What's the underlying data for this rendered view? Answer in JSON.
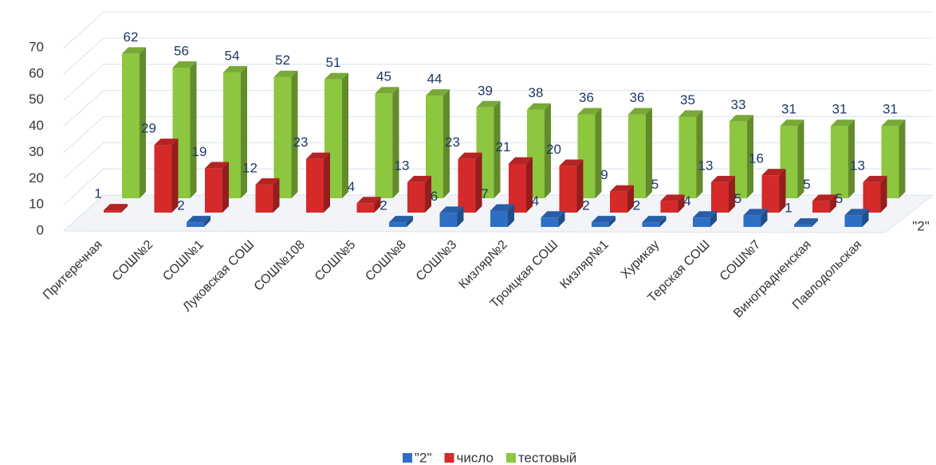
{
  "chart_data": {
    "type": "bar3d",
    "categories": [
      "Притеречная",
      "СОШ№2",
      "СОШ№1",
      "Луковская СОШ",
      "СОШ№108",
      "СОШ№5",
      "СОШ№8",
      "СОШ№3",
      "Кизляр№2",
      "Троицкая СОШ",
      "Кизляр№1",
      "Хурикау",
      "Терская СОШ",
      "СОШ№7",
      "Виноградненская",
      "Павлодольская"
    ],
    "series": [
      {
        "name": "\"2\"",
        "color": "#2e6fc4",
        "values": [
          null,
          null,
          2,
          null,
          null,
          null,
          2,
          6,
          7,
          4,
          2,
          2,
          4,
          5,
          1,
          5
        ]
      },
      {
        "name": "число",
        "color": "#d42a2a",
        "values": [
          1,
          29,
          19,
          12,
          23,
          4,
          13,
          23,
          21,
          20,
          9,
          5,
          13,
          16,
          5,
          13
        ]
      },
      {
        "name": "тестовый",
        "color": "#8dc63f",
        "values": [
          62,
          56,
          54,
          52,
          51,
          45,
          44,
          39,
          38,
          36,
          36,
          35,
          33,
          31,
          31,
          31
        ]
      }
    ],
    "ylim": [
      0,
      70
    ],
    "yticks": [
      0,
      10,
      20,
      30,
      40,
      50,
      60,
      70
    ],
    "grid": true
  }
}
